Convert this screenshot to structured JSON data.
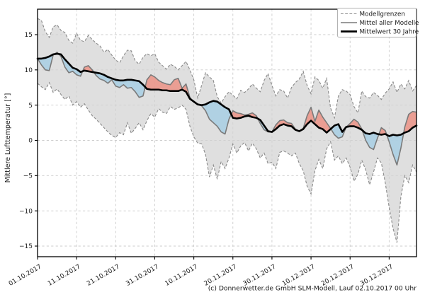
{
  "figure": {
    "copyright": "(c) Donnerwetter.de GmbH SLM-Modell, Lauf 02.10.2017 00 Uhr"
  },
  "legend": {
    "position": "upper right",
    "items": [
      {
        "label": "Modellgrenzen",
        "style": "dashed-gray"
      },
      {
        "label": "Mittel aller Modelle",
        "style": "solid-gray"
      },
      {
        "label": "Mittelwert 30 Jahre",
        "style": "solid-black-thick"
      }
    ]
  },
  "colors": {
    "band_fill": "#d2d2d2",
    "band_edge": "#8a8a8a",
    "warm_fill": "#ec8d7f",
    "cold_fill": "#a8cfe4",
    "model_mean": "#7a7a7a",
    "mean30": "#000000",
    "grid": "#cccccc",
    "spine": "#000000",
    "legend_edge": "#b3b3b3",
    "background": "#ffffff"
  },
  "chart_data": {
    "type": "line",
    "title": "",
    "xlabel": "",
    "ylabel": "Mittlere Lufttemperatur [°]",
    "grid": true,
    "legend_position": "upper right",
    "ylim": [
      -16.5,
      18.5
    ],
    "yticks": [
      15,
      10,
      5,
      0,
      -5,
      -10,
      -15
    ],
    "ytick_labels": [
      "15",
      "10",
      "5",
      "0",
      "−5",
      "−10",
      "−15"
    ],
    "x_unit_days_total": 97,
    "x_tick_days": [
      0,
      10,
      20,
      30,
      40,
      50,
      60,
      70,
      80,
      90
    ],
    "x_tick_labels": [
      "01.10.2017",
      "11.10.2017",
      "21.10.2017",
      "31.10.2017",
      "10.11.2017",
      "20.11.2017",
      "30.11.2017",
      "10.12.2017",
      "20.12.2017",
      "30.12.2017"
    ],
    "series": [
      {
        "name": "Modellgrenze oben",
        "role": "upper_bound",
        "style": "dashed",
        "values": [
          17.3,
          17.0,
          15.4,
          14.6,
          16.1,
          16.4,
          15.6,
          15.3,
          14.2,
          13.8,
          15.2,
          14.2,
          14.0,
          14.9,
          14.3,
          13.8,
          13.4,
          12.5,
          12.9,
          12.1,
          11.4,
          11.0,
          12.0,
          12.8,
          12.7,
          11.3,
          10.8,
          11.8,
          12.3,
          12.0,
          12.3,
          11.1,
          10.6,
          10.1,
          10.8,
          10.5,
          10.0,
          10.6,
          11.2,
          10.0,
          8.6,
          6.0,
          7.8,
          9.6,
          9.0,
          8.5,
          6.2,
          5.3,
          6.2,
          6.9,
          6.4,
          5.9,
          7.1,
          6.8,
          7.3,
          8.0,
          7.4,
          6.9,
          8.5,
          9.5,
          7.8,
          6.3,
          7.2,
          7.0,
          6.0,
          7.5,
          8.2,
          8.7,
          9.8,
          7.8,
          6.6,
          9.0,
          8.5,
          7.4,
          8.8,
          4.6,
          3.2,
          6.3,
          7.2,
          7.0,
          6.5,
          4.8,
          3.9,
          7.0,
          6.2,
          6.0,
          6.8,
          6.4,
          5.8,
          6.7,
          7.3,
          8.3,
          6.8,
          8.0,
          7.3,
          8.5,
          7.0,
          7.8
        ]
      },
      {
        "name": "Modellgrenze unten",
        "role": "lower_bound",
        "style": "dashed",
        "values": [
          8.1,
          7.6,
          7.2,
          8.2,
          6.8,
          7.3,
          6.5,
          5.8,
          6.3,
          5.0,
          5.5,
          4.7,
          5.2,
          4.3,
          3.5,
          3.0,
          2.4,
          1.8,
          1.2,
          0.7,
          0.4,
          1.1,
          0.8,
          2.5,
          1.0,
          1.7,
          2.5,
          1.5,
          2.8,
          3.8,
          3.3,
          4.5,
          4.0,
          3.8,
          4.8,
          4.4,
          4.6,
          5.0,
          4.4,
          2.0,
          0.5,
          -0.4,
          -0.5,
          -2.0,
          -5.2,
          -3.5,
          -5.5,
          -3.0,
          -4.0,
          -2.5,
          -0.5,
          -1.8,
          -0.8,
          -0.3,
          -1.5,
          -0.4,
          -1.2,
          -2.5,
          -1.8,
          -3.3,
          -3.1,
          -4.0,
          -1.7,
          -1.5,
          -1.8,
          -2.2,
          -1.8,
          -3.3,
          -4.3,
          -6.5,
          -7.6,
          -4.3,
          -2.7,
          -4.0,
          -1.2,
          -0.2,
          -2.8,
          -2.2,
          -3.3,
          -2.5,
          -3.8,
          -5.8,
          -4.8,
          -2.8,
          -4.2,
          -6.3,
          -4.5,
          -2.5,
          -3.2,
          -6.0,
          -9.5,
          -12.5,
          -14.5,
          -8.0,
          -5.0,
          -6.0,
          -3.5,
          -4.5
        ]
      },
      {
        "name": "Mittel aller Modelle",
        "role": "model_mean",
        "style": "solid_gray",
        "values": [
          11.6,
          10.7,
          10.0,
          9.9,
          12.1,
          12.5,
          11.9,
          10.4,
          9.6,
          9.8,
          9.3,
          9.1,
          10.4,
          10.6,
          10.0,
          9.2,
          8.7,
          8.5,
          8.1,
          8.6,
          7.7,
          7.5,
          7.9,
          7.4,
          7.5,
          6.9,
          6.1,
          6.3,
          8.6,
          9.3,
          9.0,
          8.5,
          8.2,
          8.0,
          7.9,
          8.6,
          8.8,
          7.4,
          8.0,
          6.1,
          5.4,
          5.1,
          4.9,
          4.2,
          3.0,
          2.5,
          2.0,
          1.2,
          0.9,
          3.0,
          4.2,
          3.9,
          3.8,
          3.6,
          3.7,
          3.9,
          3.5,
          2.4,
          1.5,
          1.2,
          1.2,
          2.2,
          2.8,
          2.9,
          2.5,
          2.4,
          1.6,
          1.3,
          1.7,
          3.5,
          4.7,
          2.7,
          4.3,
          3.3,
          2.5,
          1.7,
          0.8,
          0.3,
          0.5,
          1.9,
          2.4,
          3.0,
          2.6,
          1.6,
          0.0,
          -1.0,
          -1.3,
          0.3,
          1.8,
          1.4,
          -0.2,
          -2.0,
          -3.5,
          -1.1,
          1.9,
          3.7,
          4.1,
          4.0
        ]
      },
      {
        "name": "Mittelwert 30 Jahre",
        "role": "mean_30yr",
        "style": "solid_black_thick",
        "values": [
          11.6,
          11.6,
          11.7,
          11.9,
          12.2,
          12.3,
          12.2,
          11.5,
          10.9,
          10.3,
          10.1,
          9.7,
          9.9,
          9.8,
          9.7,
          9.6,
          9.5,
          9.3,
          9.0,
          8.8,
          8.6,
          8.5,
          8.5,
          8.6,
          8.6,
          8.5,
          8.4,
          7.9,
          7.3,
          7.2,
          7.2,
          7.2,
          7.1,
          7.1,
          7.0,
          7.0,
          7.0,
          7.2,
          6.9,
          5.9,
          5.5,
          5.1,
          5.0,
          5.1,
          5.4,
          5.6,
          5.5,
          5.1,
          4.7,
          4.4,
          3.2,
          3.1,
          3.2,
          3.4,
          3.5,
          3.3,
          3.2,
          2.9,
          2.1,
          1.3,
          1.2,
          1.6,
          2.1,
          2.3,
          2.1,
          2.0,
          1.5,
          1.3,
          1.6,
          2.3,
          2.8,
          2.3,
          1.8,
          1.6,
          1.1,
          1.6,
          2.1,
          2.3,
          1.2,
          1.9,
          2.0,
          2.0,
          1.8,
          1.5,
          1.0,
          0.9,
          1.1,
          0.9,
          0.8,
          0.9,
          0.6,
          0.8,
          0.7,
          0.8,
          1.1,
          1.3,
          1.8,
          2.1
        ]
      }
    ],
    "fills": [
      {
        "between": [
          "upper_bound",
          "lower_bound"
        ],
        "color_key": "band_fill"
      },
      {
        "between": [
          "model_mean",
          "mean_30yr"
        ],
        "when": "model_mean_above",
        "color_key": "warm_fill"
      },
      {
        "between": [
          "model_mean",
          "mean_30yr"
        ],
        "when": "model_mean_below",
        "color_key": "cold_fill"
      }
    ]
  }
}
